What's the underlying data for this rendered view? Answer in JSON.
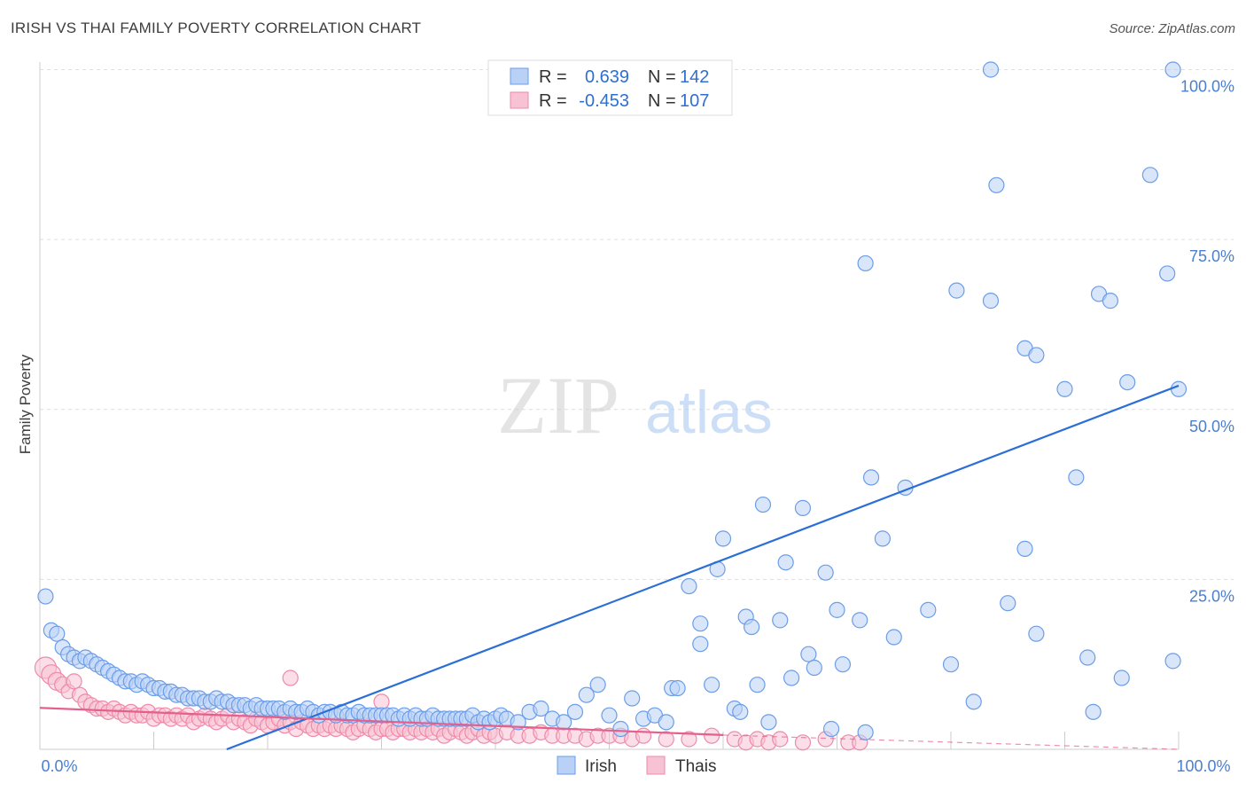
{
  "title": "IRISH VS THAI FAMILY POVERTY CORRELATION CHART",
  "source": "Source: ZipAtlas.com",
  "watermark": {
    "zip": "ZIP",
    "atlas": "atlas"
  },
  "colors": {
    "irish": "#6b9de8",
    "irish_fill": "#b9d1f5",
    "irish_line": "#2b6fd6",
    "thais": "#ee8aaa",
    "thais_fill": "#f7c3d4",
    "thais_line": "#e4608c",
    "tick": "#4a7fd0",
    "grid": "#dddddd"
  },
  "legend": {
    "irish": {
      "r_label": "R =",
      "r_value": "0.639",
      "n_label": "N =",
      "n_value": "142"
    },
    "thais": {
      "r_label": "R =",
      "r_value": "-0.453",
      "n_label": "N =",
      "n_value": "107"
    }
  },
  "chart_data": {
    "type": "scatter",
    "title": "IRISH VS THAI FAMILY POVERTY CORRELATION CHART",
    "xlabel": "",
    "ylabel": "Family Poverty",
    "xlim": [
      0,
      100
    ],
    "ylim": [
      0,
      100
    ],
    "x_tick_labels": [
      "0.0%",
      "100.0%"
    ],
    "y_tick_labels": [
      "25.0%",
      "50.0%",
      "75.0%",
      "100.0%"
    ],
    "y_ticks": [
      25,
      50,
      75,
      100
    ],
    "grid": true,
    "legend_position": "top-center",
    "series": [
      {
        "name": "Irish",
        "points": [
          [
            0.5,
            22.5
          ],
          [
            1,
            17.5
          ],
          [
            1.5,
            17
          ],
          [
            2,
            15
          ],
          [
            2.5,
            14
          ],
          [
            3,
            13.5
          ],
          [
            3.5,
            13
          ],
          [
            4,
            13.5
          ],
          [
            4.5,
            13
          ],
          [
            5,
            12.5
          ],
          [
            5.5,
            12
          ],
          [
            6,
            11.5
          ],
          [
            6.5,
            11
          ],
          [
            7,
            10.5
          ],
          [
            7.5,
            10
          ],
          [
            8,
            10
          ],
          [
            8.5,
            9.5
          ],
          [
            9,
            10
          ],
          [
            9.5,
            9.5
          ],
          [
            10,
            9
          ],
          [
            10.5,
            9
          ],
          [
            11,
            8.5
          ],
          [
            11.5,
            8.5
          ],
          [
            12,
            8
          ],
          [
            12.5,
            8
          ],
          [
            13,
            7.5
          ],
          [
            13.5,
            7.5
          ],
          [
            14,
            7.5
          ],
          [
            14.5,
            7
          ],
          [
            15,
            7
          ],
          [
            15.5,
            7.5
          ],
          [
            16,
            7
          ],
          [
            16.5,
            7
          ],
          [
            17,
            6.5
          ],
          [
            17.5,
            6.5
          ],
          [
            18,
            6.5
          ],
          [
            18.5,
            6
          ],
          [
            19,
            6.5
          ],
          [
            19.5,
            6
          ],
          [
            20,
            6
          ],
          [
            20.5,
            6
          ],
          [
            21,
            6
          ],
          [
            21.5,
            5.5
          ],
          [
            22,
            6
          ],
          [
            22.5,
            5.5
          ],
          [
            23,
            5.5
          ],
          [
            23.5,
            6
          ],
          [
            24,
            5.5
          ],
          [
            24.5,
            5
          ],
          [
            25,
            5.5
          ],
          [
            25.5,
            5.5
          ],
          [
            26,
            5
          ],
          [
            26.5,
            5.5
          ],
          [
            27,
            5
          ],
          [
            27.5,
            5
          ],
          [
            28,
            5.5
          ],
          [
            28.5,
            5
          ],
          [
            29,
            5
          ],
          [
            29.5,
            5
          ],
          [
            30,
            5
          ],
          [
            30.5,
            5
          ],
          [
            31,
            5
          ],
          [
            31.5,
            4.5
          ],
          [
            32,
            5
          ],
          [
            32.5,
            4.5
          ],
          [
            33,
            5
          ],
          [
            33.5,
            4.5
          ],
          [
            34,
            4.5
          ],
          [
            34.5,
            5
          ],
          [
            35,
            4.5
          ],
          [
            35.5,
            4.5
          ],
          [
            36,
            4.5
          ],
          [
            36.5,
            4.5
          ],
          [
            37,
            4.5
          ],
          [
            37.5,
            4.5
          ],
          [
            38,
            5
          ],
          [
            38.5,
            4
          ],
          [
            39,
            4.5
          ],
          [
            39.5,
            4
          ],
          [
            40,
            4.5
          ],
          [
            40.5,
            5
          ],
          [
            41,
            4.5
          ],
          [
            42,
            4
          ],
          [
            43,
            5.5
          ],
          [
            44,
            6
          ],
          [
            45,
            4.5
          ],
          [
            46,
            4
          ],
          [
            47,
            5.5
          ],
          [
            48,
            8
          ],
          [
            49,
            9.5
          ],
          [
            50,
            5
          ],
          [
            51,
            3
          ],
          [
            52,
            7.5
          ],
          [
            53,
            4.5
          ],
          [
            54,
            5
          ],
          [
            55,
            4
          ],
          [
            55.5,
            9
          ],
          [
            56,
            9
          ],
          [
            57,
            24
          ],
          [
            58,
            15.5
          ],
          [
            58,
            18.5
          ],
          [
            59,
            9.5
          ],
          [
            59.5,
            26.5
          ],
          [
            60,
            31
          ],
          [
            61,
            6
          ],
          [
            61.5,
            5.5
          ],
          [
            62,
            19.5
          ],
          [
            62.5,
            18
          ],
          [
            63,
            9.5
          ],
          [
            63.5,
            36
          ],
          [
            64,
            4
          ],
          [
            65,
            19
          ],
          [
            65.5,
            27.5
          ],
          [
            66,
            10.5
          ],
          [
            67,
            35.5
          ],
          [
            67.5,
            14
          ],
          [
            68,
            12
          ],
          [
            69,
            26
          ],
          [
            69.5,
            3
          ],
          [
            70,
            20.5
          ],
          [
            70.5,
            12.5
          ],
          [
            72,
            19
          ],
          [
            72.5,
            2.5
          ],
          [
            72.5,
            71.5
          ],
          [
            73,
            40
          ],
          [
            74,
            31
          ],
          [
            75,
            16.5
          ],
          [
            76,
            38.5
          ],
          [
            78,
            20.5
          ],
          [
            80,
            12.5
          ],
          [
            80.5,
            67.5
          ],
          [
            82,
            7
          ],
          [
            83.5,
            66
          ],
          [
            85,
            21.5
          ],
          [
            86.5,
            29.5
          ],
          [
            86.5,
            59
          ],
          [
            87.5,
            17
          ],
          [
            87.5,
            58
          ],
          [
            90,
            53
          ],
          [
            91,
            40
          ],
          [
            92,
            13.5
          ],
          [
            92.5,
            5.5
          ],
          [
            93,
            67
          ],
          [
            94,
            66
          ],
          [
            95,
            10.5
          ],
          [
            95.5,
            54
          ],
          [
            97.5,
            84.5
          ],
          [
            99,
            70
          ],
          [
            99.5,
            13
          ],
          [
            100,
            53
          ],
          [
            83.5,
            100
          ],
          [
            84,
            83
          ],
          [
            99.5,
            100
          ]
        ]
      },
      {
        "name": "Thais",
        "points": [
          [
            0.5,
            12
          ],
          [
            1,
            11
          ],
          [
            1.5,
            10
          ],
          [
            2,
            9.5
          ],
          [
            2.5,
            8.5
          ],
          [
            3,
            10
          ],
          [
            3.5,
            8
          ],
          [
            4,
            7
          ],
          [
            4.5,
            6.5
          ],
          [
            5,
            6
          ],
          [
            5.5,
            6
          ],
          [
            6,
            5.5
          ],
          [
            6.5,
            6
          ],
          [
            7,
            5.5
          ],
          [
            7.5,
            5
          ],
          [
            8,
            5.5
          ],
          [
            8.5,
            5
          ],
          [
            9,
            5
          ],
          [
            9.5,
            5.5
          ],
          [
            10,
            4.5
          ],
          [
            10.5,
            5
          ],
          [
            11,
            5
          ],
          [
            11.5,
            4.5
          ],
          [
            12,
            5
          ],
          [
            12.5,
            4.5
          ],
          [
            13,
            5
          ],
          [
            13.5,
            4
          ],
          [
            14,
            4.5
          ],
          [
            14.5,
            5
          ],
          [
            15,
            4.5
          ],
          [
            15.5,
            4
          ],
          [
            16,
            4.5
          ],
          [
            16.5,
            5
          ],
          [
            17,
            4
          ],
          [
            17.5,
            4.5
          ],
          [
            18,
            4
          ],
          [
            18.5,
            3.5
          ],
          [
            19,
            4.5
          ],
          [
            19.5,
            4
          ],
          [
            20,
            3.5
          ],
          [
            20.5,
            4
          ],
          [
            21,
            4.5
          ],
          [
            21.5,
            3.5
          ],
          [
            22,
            4
          ],
          [
            22.5,
            3
          ],
          [
            23,
            4
          ],
          [
            23.5,
            3.5
          ],
          [
            24,
            3
          ],
          [
            24.5,
            3.5
          ],
          [
            25,
            3
          ],
          [
            25.5,
            3.5
          ],
          [
            26,
            3
          ],
          [
            26.5,
            3.5
          ],
          [
            27,
            3
          ],
          [
            27.5,
            2.5
          ],
          [
            28,
            3
          ],
          [
            28.5,
            3.5
          ],
          [
            29,
            3
          ],
          [
            29.5,
            2.5
          ],
          [
            30,
            3
          ],
          [
            30.5,
            3
          ],
          [
            31,
            2.5
          ],
          [
            31.5,
            3
          ],
          [
            32,
            3
          ],
          [
            32.5,
            2.5
          ],
          [
            33,
            3
          ],
          [
            33.5,
            2.5
          ],
          [
            34,
            3
          ],
          [
            34.5,
            2.5
          ],
          [
            35,
            3
          ],
          [
            35.5,
            2
          ],
          [
            36,
            2.5
          ],
          [
            36.5,
            3
          ],
          [
            37,
            2.5
          ],
          [
            37.5,
            2
          ],
          [
            38,
            2.5
          ],
          [
            38.5,
            3
          ],
          [
            39,
            2
          ],
          [
            39.5,
            2.5
          ],
          [
            40,
            2
          ],
          [
            41,
            2.5
          ],
          [
            42,
            2
          ],
          [
            43,
            2
          ],
          [
            44,
            2.5
          ],
          [
            45,
            2
          ],
          [
            46,
            2
          ],
          [
            47,
            2
          ],
          [
            48,
            1.5
          ],
          [
            49,
            2
          ],
          [
            50,
            2
          ],
          [
            51,
            2
          ],
          [
            52,
            1.5
          ],
          [
            53,
            2
          ],
          [
            55,
            1.5
          ],
          [
            57,
            1.5
          ],
          [
            59,
            2
          ],
          [
            61,
            1.5
          ],
          [
            62,
            1
          ],
          [
            63,
            1.5
          ],
          [
            64,
            1
          ],
          [
            65,
            1.5
          ],
          [
            67,
            1
          ],
          [
            69,
            1.5
          ],
          [
            71,
            1
          ],
          [
            72,
            1
          ],
          [
            22,
            10.5
          ],
          [
            30,
            7
          ]
        ]
      }
    ],
    "trendlines": [
      {
        "series": "Irish",
        "x": [
          0,
          100
        ],
        "y": [
          -10.5,
          53.5
        ]
      },
      {
        "series": "Thais",
        "x": [
          0,
          60
        ],
        "y": [
          6.1,
          2.1
        ],
        "dashed_extension_to": [
          100,
          -0.5
        ]
      }
    ]
  },
  "bottom_legend": {
    "irish": "Irish",
    "thais": "Thais"
  }
}
